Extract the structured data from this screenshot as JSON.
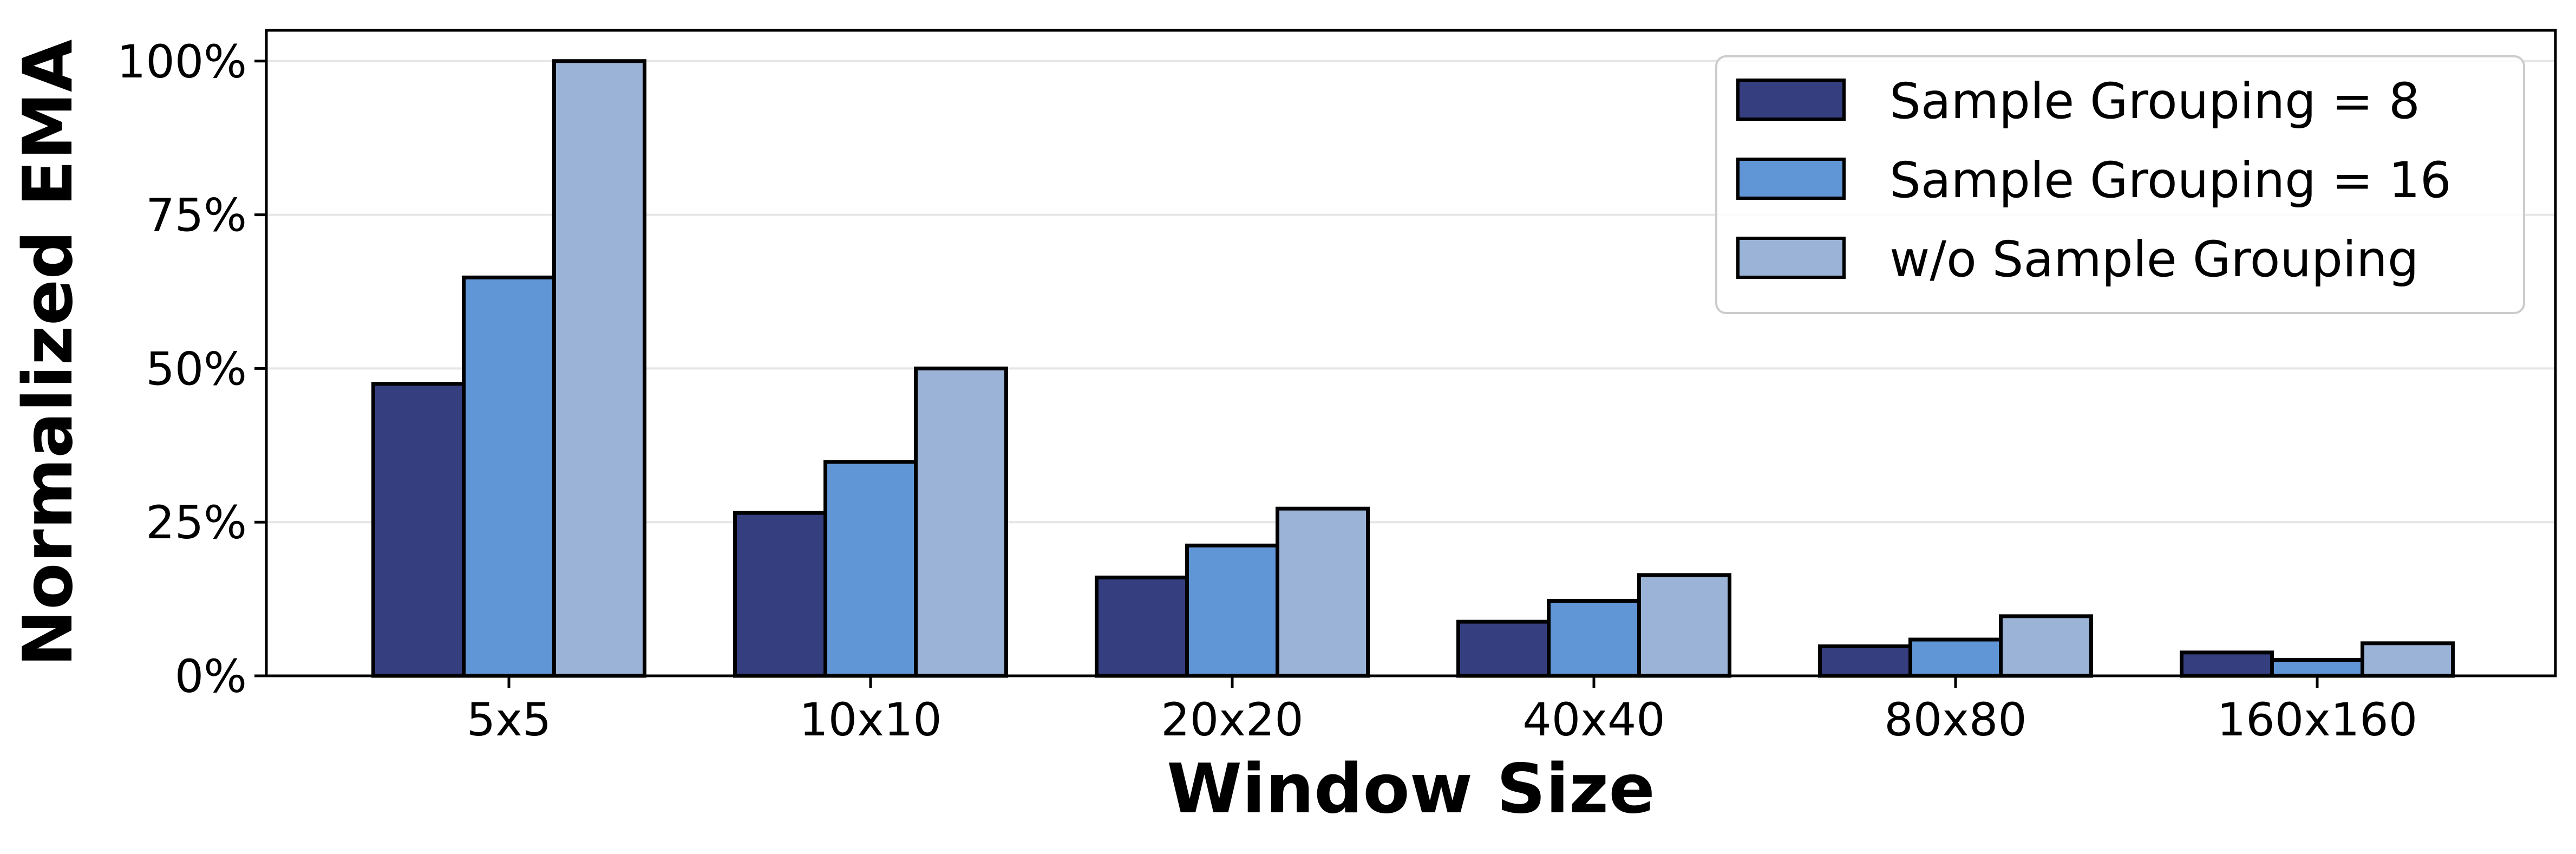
{
  "chart_data": {
    "type": "bar",
    "title": "",
    "xlabel": "Window Size",
    "ylabel": "Normalized EMA",
    "categories": [
      "5x5",
      "10x10",
      "20x20",
      "40x40",
      "80x80",
      "160x160"
    ],
    "series": [
      {
        "name": "Sample Grouping = 8",
        "color": "#353f80",
        "values": [
          47.5,
          26.5,
          16.0,
          8.8,
          4.8,
          3.8
        ]
      },
      {
        "name": "Sample Grouping = 16",
        "color": "#6196d6",
        "values": [
          64.8,
          34.8,
          21.2,
          12.2,
          5.9,
          2.6
        ]
      },
      {
        "name": "w/o Sample Grouping",
        "color": "#9bb3d6",
        "values": [
          100,
          50,
          27.2,
          16.4,
          9.7,
          5.3
        ]
      }
    ],
    "ylim": [
      0,
      105
    ],
    "yticks": [
      0,
      25,
      50,
      75,
      100
    ],
    "ytick_labels": [
      "0%",
      "25%",
      "50%",
      "75%",
      "100%"
    ],
    "grid": "horizontal",
    "legend_position": "top-right"
  }
}
